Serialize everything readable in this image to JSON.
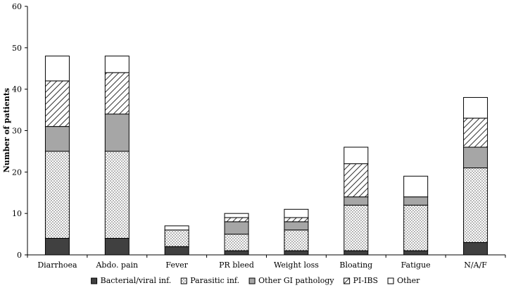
{
  "chart_data": {
    "type": "bar",
    "stacked": true,
    "title": "",
    "xlabel": "",
    "ylabel": "Number of patients",
    "ylim": [
      0,
      60
    ],
    "yticks": [
      0,
      10,
      20,
      30,
      40,
      50,
      60
    ],
    "grid": false,
    "legend_position": "bottom",
    "categories": [
      "Diarrhoea",
      "Abdo. pain",
      "Fever",
      "PR bleed",
      "Weight loss",
      "Bloating",
      "Fatigue",
      "N/A/F"
    ],
    "series": [
      {
        "name": "Bacterial/viral inf.",
        "pattern": "solid-dark",
        "color": "#404040",
        "values": [
          4,
          4,
          2,
          1,
          1,
          1,
          1,
          3
        ]
      },
      {
        "name": "Parasitic inf.",
        "pattern": "dots",
        "color": "#ffffff",
        "values": [
          21,
          21,
          4,
          4,
          5,
          11,
          11,
          18
        ]
      },
      {
        "name": "Other GI pathology",
        "pattern": "solid-grey",
        "color": "#a6a6a6",
        "values": [
          6,
          9,
          0,
          3,
          2,
          2,
          2,
          5
        ]
      },
      {
        "name": "PI-IBS",
        "pattern": "hatch",
        "color": "#ffffff",
        "values": [
          11,
          10,
          0,
          1,
          1,
          8,
          0,
          7
        ]
      },
      {
        "name": "Other",
        "pattern": "white",
        "color": "#ffffff",
        "values": [
          6,
          4,
          1,
          1,
          2,
          4,
          5,
          5
        ]
      }
    ]
  }
}
